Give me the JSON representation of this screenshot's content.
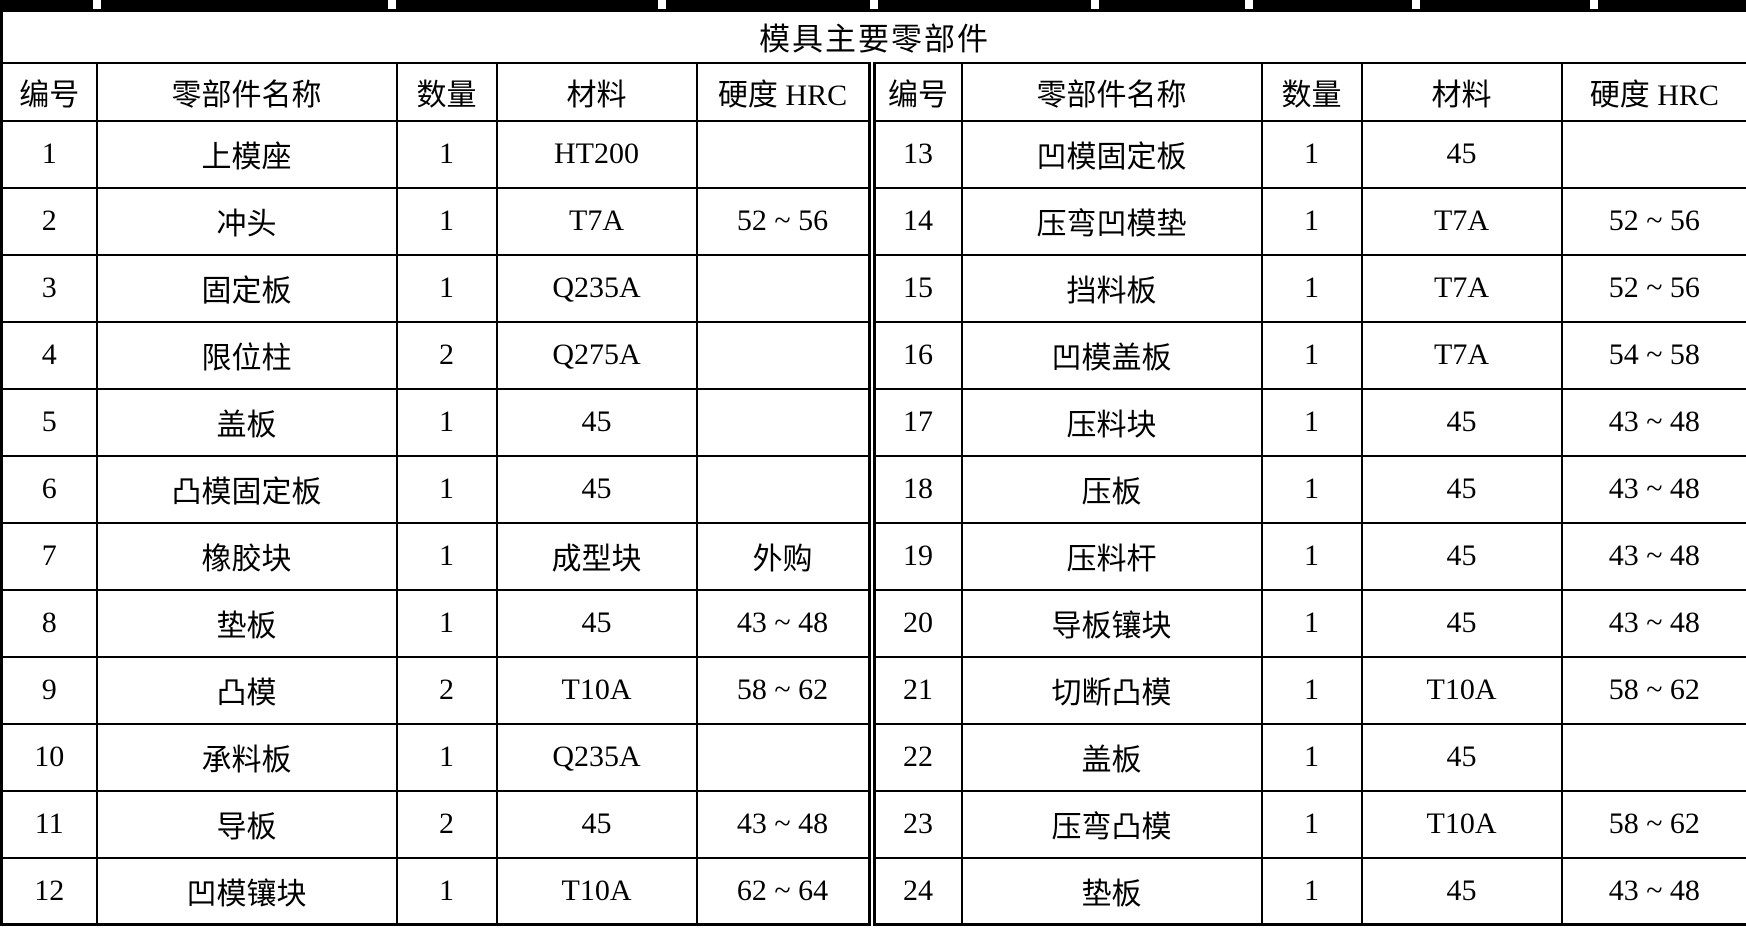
{
  "title": "模具主要零部件",
  "columns": [
    "编号",
    "零部件名称",
    "数量",
    "材料",
    "硬度 HRC"
  ],
  "left_rows": [
    [
      "1",
      "上模座",
      "1",
      "HT200",
      ""
    ],
    [
      "2",
      "冲头",
      "1",
      "T7A",
      "52 ~ 56"
    ],
    [
      "3",
      "固定板",
      "1",
      "Q235A",
      ""
    ],
    [
      "4",
      "限位柱",
      "2",
      "Q275A",
      ""
    ],
    [
      "5",
      "盖板",
      "1",
      "45",
      ""
    ],
    [
      "6",
      "凸模固定板",
      "1",
      "45",
      ""
    ],
    [
      "7",
      "橡胶块",
      "1",
      "成型块",
      "外购"
    ],
    [
      "8",
      "垫板",
      "1",
      "45",
      "43 ~ 48"
    ],
    [
      "9",
      "凸模",
      "2",
      "T10A",
      "58 ~ 62"
    ],
    [
      "10",
      "承料板",
      "1",
      "Q235A",
      ""
    ],
    [
      "11",
      "导板",
      "2",
      "45",
      "43 ~ 48"
    ],
    [
      "12",
      "凹模镶块",
      "1",
      "T10A",
      "62 ~ 64"
    ]
  ],
  "right_rows": [
    [
      "13",
      "凹模固定板",
      "1",
      "45",
      ""
    ],
    [
      "14",
      "压弯凹模垫",
      "1",
      "T7A",
      "52 ~ 56"
    ],
    [
      "15",
      "挡料板",
      "1",
      "T7A",
      "52 ~ 56"
    ],
    [
      "16",
      "凹模盖板",
      "1",
      "T7A",
      "54 ~ 58"
    ],
    [
      "17",
      "压料块",
      "1",
      "45",
      "43 ~ 48"
    ],
    [
      "18",
      "压板",
      "1",
      "45",
      "43 ~ 48"
    ],
    [
      "19",
      "压料杆",
      "1",
      "45",
      "43 ~ 48"
    ],
    [
      "20",
      "导板镶块",
      "1",
      "45",
      "43 ~ 48"
    ],
    [
      "21",
      "切断凸模",
      "1",
      "T10A",
      "58 ~ 62"
    ],
    [
      "22",
      "盖板",
      "1",
      "45",
      ""
    ],
    [
      "23",
      "压弯凸模",
      "1",
      "T10A",
      "58 ~ 62"
    ],
    [
      "24",
      "垫板",
      "1",
      "45",
      "43 ~ 48"
    ]
  ]
}
